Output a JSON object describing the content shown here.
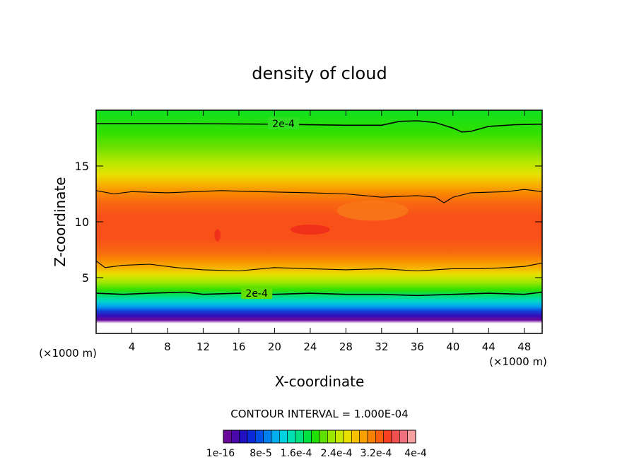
{
  "chart_data": {
    "type": "heatmap",
    "title": "density of cloud",
    "xlabel": "X-coordinate",
    "ylabel": "Z-coordinate",
    "x_unit": "(×1000 m)",
    "y_unit": "(×1000 m)",
    "xlim": [
      0,
      50
    ],
    "ylim": [
      0,
      20
    ],
    "x_ticks": [
      4,
      8,
      12,
      16,
      20,
      24,
      28,
      32,
      36,
      40,
      44,
      48
    ],
    "y_ticks": [
      5,
      10,
      15
    ],
    "contour_interval_text": "CONTOUR INTERVAL = 1.000E-04",
    "contour_label": "2e-4",
    "colorbar_labels": [
      "1e-16",
      "8e-5",
      "1.6e-4",
      "2.4e-4",
      "3.2e-4",
      "4e-4"
    ],
    "colorbar_colors": [
      "#6a0a9a",
      "#4a08aa",
      "#2010c0",
      "#0a2ad8",
      "#0050e8",
      "#0080f0",
      "#00aef0",
      "#00d0e0",
      "#00e0b0",
      "#00e080",
      "#00e040",
      "#20e000",
      "#60e000",
      "#9ae800",
      "#c8e800",
      "#e8e000",
      "#f8c000",
      "#f8a000",
      "#f88000",
      "#f86010",
      "#f84020",
      "#f05050",
      "#f07080",
      "#f8a0a0"
    ],
    "vertical_profile": [
      {
        "z": 0.9,
        "color": "#ffffff"
      },
      {
        "z": 1.2,
        "color": "#6a0a9a"
      },
      {
        "z": 1.6,
        "color": "#3010b8"
      },
      {
        "z": 2.0,
        "color": "#1040d8"
      },
      {
        "z": 2.4,
        "color": "#00a0f0"
      },
      {
        "z": 2.9,
        "color": "#00d8c8"
      },
      {
        "z": 3.4,
        "color": "#00e070"
      },
      {
        "z": 3.9,
        "color": "#30e000"
      },
      {
        "z": 4.6,
        "color": "#a0e800"
      },
      {
        "z": 5.3,
        "color": "#e8e000"
      },
      {
        "z": 5.9,
        "color": "#f8b000"
      },
      {
        "z": 6.6,
        "color": "#f88a00"
      },
      {
        "z": 7.2,
        "color": "#f86a10"
      },
      {
        "z": 8.5,
        "color": "#f85018"
      },
      {
        "z": 10.5,
        "color": "#f85018"
      },
      {
        "z": 11.8,
        "color": "#f86a10"
      },
      {
        "z": 12.6,
        "color": "#f88a00"
      },
      {
        "z": 13.3,
        "color": "#f8b000"
      },
      {
        "z": 14.2,
        "color": "#e8e000"
      },
      {
        "z": 15.3,
        "color": "#b8e800"
      },
      {
        "z": 16.6,
        "color": "#70e000"
      },
      {
        "z": 18.0,
        "color": "#30e000"
      },
      {
        "z": 20.0,
        "color": "#10e020"
      }
    ],
    "contours": [
      {
        "name": "upper-contour-2e-4",
        "labeled": true,
        "points": [
          [
            0,
            18.8
          ],
          [
            10,
            18.8
          ],
          [
            20,
            18.75
          ],
          [
            28,
            18.65
          ],
          [
            32,
            18.65
          ],
          [
            34,
            19.0
          ],
          [
            36,
            19.05
          ],
          [
            38,
            18.9
          ],
          [
            40,
            18.4
          ],
          [
            41,
            18.05
          ],
          [
            42,
            18.1
          ],
          [
            44,
            18.55
          ],
          [
            47,
            18.7
          ],
          [
            50,
            18.75
          ]
        ]
      },
      {
        "name": "cloud-top-contour",
        "labeled": false,
        "points": [
          [
            0,
            12.8
          ],
          [
            2,
            12.5
          ],
          [
            4,
            12.7
          ],
          [
            8,
            12.6
          ],
          [
            14,
            12.8
          ],
          [
            18,
            12.7
          ],
          [
            24,
            12.6
          ],
          [
            28,
            12.5
          ],
          [
            32,
            12.2
          ],
          [
            36,
            12.35
          ],
          [
            38,
            12.2
          ],
          [
            39,
            11.7
          ],
          [
            40,
            12.2
          ],
          [
            42,
            12.6
          ],
          [
            46,
            12.7
          ],
          [
            48,
            12.9
          ],
          [
            50,
            12.7
          ]
        ]
      },
      {
        "name": "cloud-base-contour",
        "labeled": false,
        "points": [
          [
            0,
            6.5
          ],
          [
            1,
            5.9
          ],
          [
            3,
            6.1
          ],
          [
            6,
            6.2
          ],
          [
            9,
            5.9
          ],
          [
            12,
            5.7
          ],
          [
            16,
            5.6
          ],
          [
            20,
            5.9
          ],
          [
            24,
            5.8
          ],
          [
            28,
            5.7
          ],
          [
            32,
            5.8
          ],
          [
            36,
            5.6
          ],
          [
            40,
            5.8
          ],
          [
            43,
            5.8
          ],
          [
            46,
            5.9
          ],
          [
            48,
            6.0
          ],
          [
            50,
            6.3
          ]
        ]
      },
      {
        "name": "lower-contour-2e-4",
        "labeled": true,
        "points": [
          [
            0,
            3.6
          ],
          [
            3,
            3.5
          ],
          [
            6,
            3.6
          ],
          [
            10,
            3.7
          ],
          [
            12,
            3.5
          ],
          [
            16,
            3.6
          ],
          [
            20,
            3.5
          ],
          [
            24,
            3.6
          ],
          [
            28,
            3.5
          ],
          [
            32,
            3.5
          ],
          [
            36,
            3.4
          ],
          [
            40,
            3.5
          ],
          [
            44,
            3.6
          ],
          [
            48,
            3.5
          ],
          [
            50,
            3.7
          ]
        ]
      }
    ],
    "patches": [
      {
        "x": 24,
        "z": 9.3,
        "rx": 2.2,
        "rz": 0.45,
        "color": "#f02a1a"
      },
      {
        "x": 13.6,
        "z": 8.8,
        "rx": 0.35,
        "rz": 0.55,
        "color": "#f02a1a"
      },
      {
        "x": 31,
        "z": 11.0,
        "rx": 4.0,
        "rz": 0.9,
        "color": "#f87818"
      }
    ]
  }
}
